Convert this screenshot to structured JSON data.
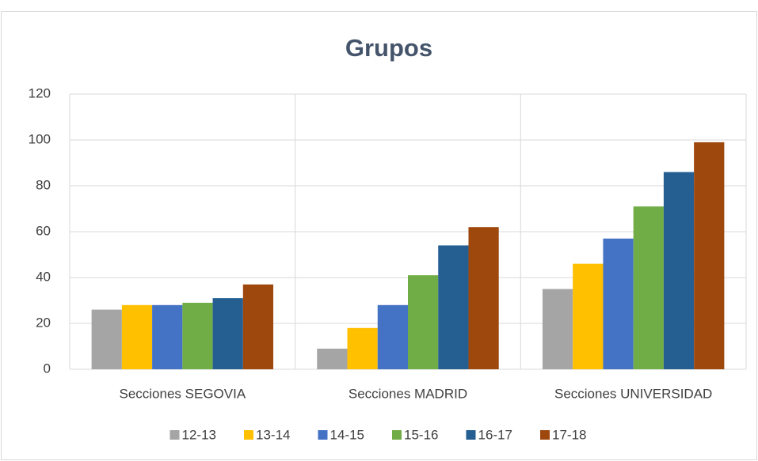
{
  "chart_data": {
    "type": "bar",
    "title": "Grupos",
    "categories": [
      "Secciones SEGOVIA",
      "Secciones MADRID",
      "Secciones UNIVERSIDAD"
    ],
    "series": [
      {
        "name": "12-13",
        "color": "#a5a5a5",
        "values": [
          26,
          9,
          35
        ]
      },
      {
        "name": "13-14",
        "color": "#ffc000",
        "values": [
          28,
          18,
          46
        ]
      },
      {
        "name": "14-15",
        "color": "#4472c4",
        "values": [
          28,
          28,
          57
        ]
      },
      {
        "name": "15-16",
        "color": "#70ad47",
        "values": [
          29,
          41,
          71
        ]
      },
      {
        "name": "16-17",
        "color": "#255e91",
        "values": [
          31,
          54,
          86
        ]
      },
      {
        "name": "17-18",
        "color": "#9e480e",
        "values": [
          37,
          62,
          99
        ]
      }
    ],
    "ylim": [
      0,
      120
    ],
    "yticks": [
      0,
      20,
      40,
      60,
      80,
      100,
      120
    ],
    "grid": true,
    "legend": "bottom"
  }
}
